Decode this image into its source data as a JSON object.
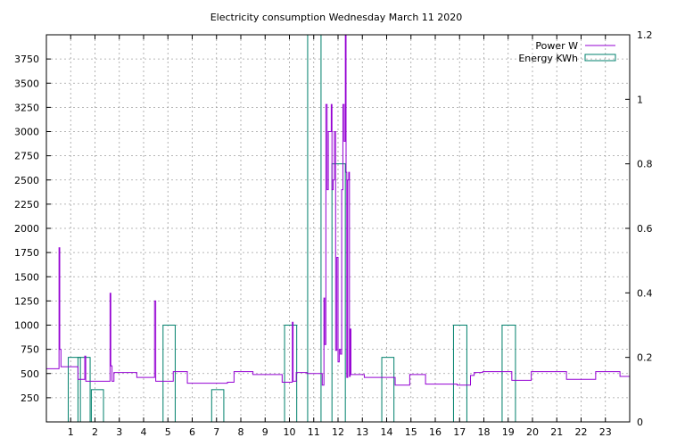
{
  "chart_data": {
    "type": "line",
    "title": "Electricity consumption Wednesday March 11 2020",
    "x_ticks": [
      1,
      2,
      3,
      4,
      5,
      6,
      7,
      8,
      9,
      10,
      11,
      12,
      13,
      14,
      15,
      16,
      17,
      18,
      19,
      20,
      21,
      22,
      23
    ],
    "xlim": [
      0,
      24
    ],
    "y_ticks": [
      250,
      500,
      750,
      1000,
      1250,
      1500,
      1750,
      2000,
      2250,
      2500,
      2750,
      3000,
      3250,
      3500,
      3750
    ],
    "ylim": [
      0,
      4000
    ],
    "y2_ticks": [
      "0",
      "0.2",
      "0.4",
      "0.6",
      "0.8",
      "1",
      "1.2"
    ],
    "y2_values": [
      0,
      0.2,
      0.4,
      0.6,
      0.8,
      1.0,
      1.2
    ],
    "y2lim": [
      0,
      1.2
    ],
    "grid": true,
    "legend_position": "top-right",
    "series": [
      {
        "name": "Power W",
        "color": "#9400d3",
        "kind": "step-line",
        "points": [
          [
            0.0,
            550
          ],
          [
            0.5,
            550
          ],
          [
            0.52,
            1800
          ],
          [
            0.55,
            750
          ],
          [
            0.6,
            570
          ],
          [
            1.25,
            570
          ],
          [
            1.3,
            440
          ],
          [
            1.55,
            440
          ],
          [
            1.58,
            680
          ],
          [
            1.62,
            420
          ],
          [
            2.6,
            420
          ],
          [
            2.62,
            1330
          ],
          [
            2.65,
            580
          ],
          [
            2.7,
            420
          ],
          [
            2.75,
            420
          ],
          [
            2.78,
            510
          ],
          [
            3.7,
            510
          ],
          [
            3.72,
            460
          ],
          [
            4.4,
            460
          ],
          [
            4.45,
            1250
          ],
          [
            4.5,
            420
          ],
          [
            5.2,
            420
          ],
          [
            5.22,
            520
          ],
          [
            5.75,
            520
          ],
          [
            5.8,
            400
          ],
          [
            7.4,
            400
          ],
          [
            7.45,
            410
          ],
          [
            7.7,
            410
          ],
          [
            7.72,
            520
          ],
          [
            8.45,
            520
          ],
          [
            8.5,
            490
          ],
          [
            9.65,
            490
          ],
          [
            9.7,
            410
          ],
          [
            10.1,
            410
          ],
          [
            10.12,
            1030
          ],
          [
            10.15,
            420
          ],
          [
            10.25,
            420
          ],
          [
            10.28,
            510
          ],
          [
            10.7,
            510
          ],
          [
            10.72,
            500
          ],
          [
            11.3,
            500
          ],
          [
            11.35,
            380
          ],
          [
            11.42,
            1280
          ],
          [
            11.45,
            800
          ],
          [
            11.5,
            3280
          ],
          [
            11.55,
            2400
          ],
          [
            11.6,
            3000
          ],
          [
            11.7,
            3000
          ],
          [
            11.72,
            3280
          ],
          [
            11.75,
            2400
          ],
          [
            11.8,
            2500
          ],
          [
            11.85,
            3000
          ],
          [
            11.9,
            740
          ],
          [
            11.95,
            1700
          ],
          [
            12.0,
            620
          ],
          [
            12.05,
            750
          ],
          [
            12.1,
            700
          ],
          [
            12.15,
            2400
          ],
          [
            12.2,
            3280
          ],
          [
            12.25,
            2900
          ],
          [
            12.3,
            4000
          ],
          [
            12.33,
            2580
          ],
          [
            12.36,
            460
          ],
          [
            12.4,
            2500
          ],
          [
            12.44,
            2580
          ],
          [
            12.47,
            470
          ],
          [
            12.5,
            960
          ],
          [
            12.53,
            490
          ],
          [
            13.05,
            490
          ],
          [
            13.08,
            460
          ],
          [
            14.3,
            460
          ],
          [
            14.35,
            380
          ],
          [
            14.9,
            380
          ],
          [
            14.95,
            490
          ],
          [
            15.55,
            490
          ],
          [
            15.6,
            390
          ],
          [
            16.85,
            390
          ],
          [
            16.9,
            380
          ],
          [
            17.4,
            380
          ],
          [
            17.45,
            480
          ],
          [
            17.55,
            480
          ],
          [
            17.6,
            510
          ],
          [
            17.9,
            510
          ],
          [
            17.95,
            520
          ],
          [
            19.1,
            520
          ],
          [
            19.15,
            430
          ],
          [
            19.9,
            430
          ],
          [
            19.95,
            520
          ],
          [
            21.35,
            520
          ],
          [
            21.4,
            440
          ],
          [
            22.55,
            440
          ],
          [
            22.6,
            520
          ],
          [
            23.55,
            520
          ],
          [
            23.6,
            470
          ],
          [
            24.0,
            470
          ]
        ]
      },
      {
        "name": "Energy KWh",
        "color": "#00806c",
        "kind": "boxes",
        "bars": [
          [
            0.9,
            1.4,
            0.2
          ],
          [
            1.3,
            1.8,
            0.2
          ],
          [
            1.85,
            2.35,
            0.1
          ],
          [
            4.8,
            5.3,
            0.3
          ],
          [
            6.8,
            7.3,
            0.1
          ],
          [
            9.8,
            10.3,
            0.3
          ],
          [
            10.75,
            11.3,
            1.2
          ],
          [
            11.75,
            12.3,
            0.8
          ],
          [
            13.8,
            14.3,
            0.2
          ],
          [
            16.75,
            17.3,
            0.3
          ],
          [
            18.75,
            19.3,
            0.3
          ]
        ]
      }
    ]
  }
}
